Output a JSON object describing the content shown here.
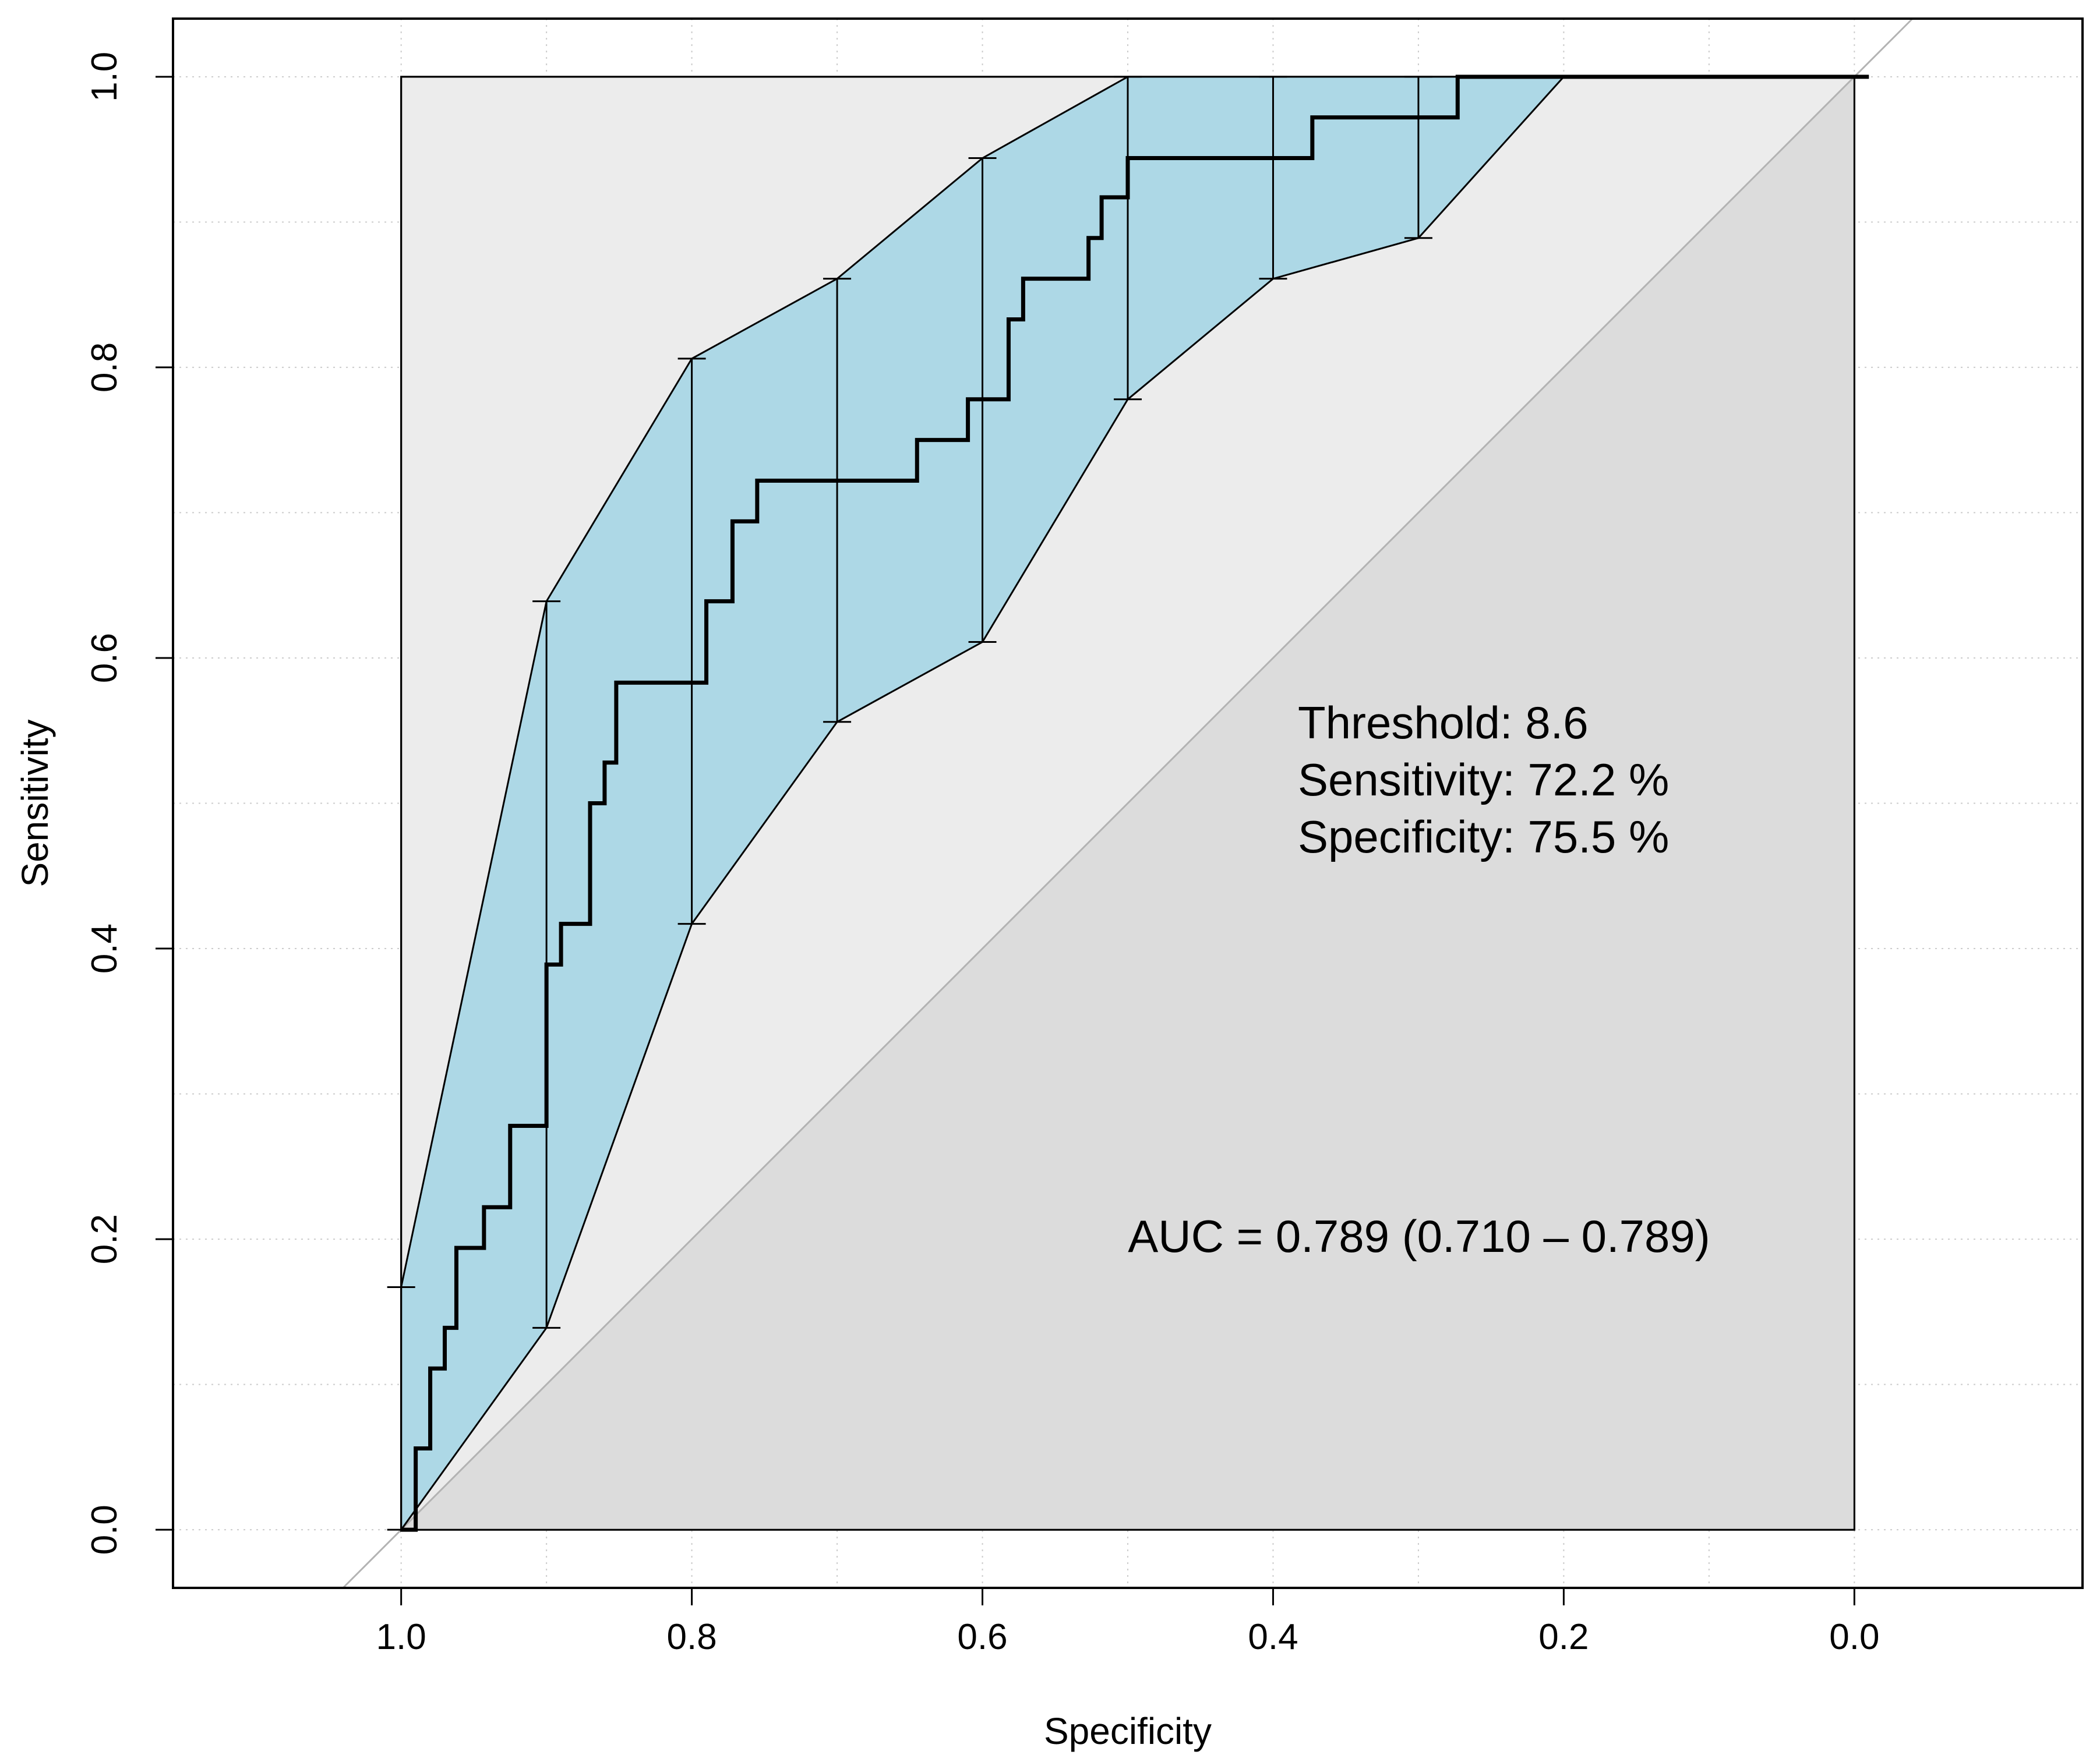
{
  "chart_data": {
    "type": "line",
    "title": "",
    "xlabel": "Specificity",
    "ylabel": "Sensitivity",
    "xlim": [
      1.157,
      -0.157
    ],
    "ylim": [
      -0.04,
      1.04
    ],
    "x_ticks": [
      1.0,
      0.8,
      0.6,
      0.4,
      0.2,
      0.0
    ],
    "x_tick_labels": [
      "1.0",
      "0.8",
      "0.6",
      "0.4",
      "0.2",
      "0.0"
    ],
    "y_ticks": [
      0.0,
      0.2,
      0.4,
      0.6,
      0.8,
      1.0
    ],
    "y_tick_labels": [
      "0.0",
      "0.2",
      "0.4",
      "0.6",
      "0.8",
      "1.0"
    ],
    "grid": true,
    "colors": {
      "roc_line": "#000000",
      "ci_band": "#add8e6",
      "upper_region": "#ececec",
      "lower_region": "#dcdcdc",
      "diagonal": "#b3b3b3",
      "grid": "#cccccc"
    },
    "series": [
      {
        "name": "ROC curve",
        "points": [
          [
            1.0,
            0.0
          ],
          [
            0.99,
            0.0
          ],
          [
            0.99,
            0.056
          ],
          [
            0.98,
            0.056
          ],
          [
            0.98,
            0.111
          ],
          [
            0.97,
            0.111
          ],
          [
            0.97,
            0.139
          ],
          [
            0.962,
            0.139
          ],
          [
            0.962,
            0.194
          ],
          [
            0.943,
            0.194
          ],
          [
            0.943,
            0.222
          ],
          [
            0.925,
            0.222
          ],
          [
            0.925,
            0.278
          ],
          [
            0.9,
            0.278
          ],
          [
            0.9,
            0.389
          ],
          [
            0.89,
            0.389
          ],
          [
            0.89,
            0.417
          ],
          [
            0.87,
            0.417
          ],
          [
            0.87,
            0.5
          ],
          [
            0.86,
            0.5
          ],
          [
            0.86,
            0.528
          ],
          [
            0.852,
            0.528
          ],
          [
            0.852,
            0.583
          ],
          [
            0.79,
            0.583
          ],
          [
            0.79,
            0.639
          ],
          [
            0.772,
            0.639
          ],
          [
            0.772,
            0.694
          ],
          [
            0.755,
            0.694
          ],
          [
            0.755,
            0.722
          ],
          [
            0.645,
            0.722
          ],
          [
            0.645,
            0.75
          ],
          [
            0.61,
            0.75
          ],
          [
            0.61,
            0.778
          ],
          [
            0.582,
            0.778
          ],
          [
            0.582,
            0.833
          ],
          [
            0.572,
            0.833
          ],
          [
            0.572,
            0.861
          ],
          [
            0.527,
            0.861
          ],
          [
            0.527,
            0.889
          ],
          [
            0.518,
            0.889
          ],
          [
            0.518,
            0.917
          ],
          [
            0.5,
            0.917
          ],
          [
            0.5,
            0.944
          ],
          [
            0.373,
            0.944
          ],
          [
            0.373,
            0.972
          ],
          [
            0.273,
            0.972
          ],
          [
            0.273,
            1.0
          ],
          [
            -0.01,
            1.0
          ]
        ]
      }
    ],
    "ci_sensitivity": {
      "specificity": [
        1.0,
        0.9,
        0.8,
        0.7,
        0.6,
        0.5,
        0.4,
        0.3,
        0.2,
        0.1,
        0.0
      ],
      "lower": [
        0.0,
        0.139,
        0.417,
        0.556,
        0.611,
        0.778,
        0.861,
        0.889,
        1.0,
        1.0,
        1.0
      ],
      "upper": [
        0.167,
        0.639,
        0.806,
        0.861,
        0.944,
        1.0,
        1.0,
        1.0,
        1.0,
        1.0,
        1.0
      ]
    },
    "annotations": {
      "threshold": "Threshold: 8.6",
      "sensitivity": "Sensitivity: 72.2 %",
      "specificity": "Specificity: 75.5 %",
      "auc": "AUC = 0.789 (0.710 – 0.789)"
    }
  }
}
